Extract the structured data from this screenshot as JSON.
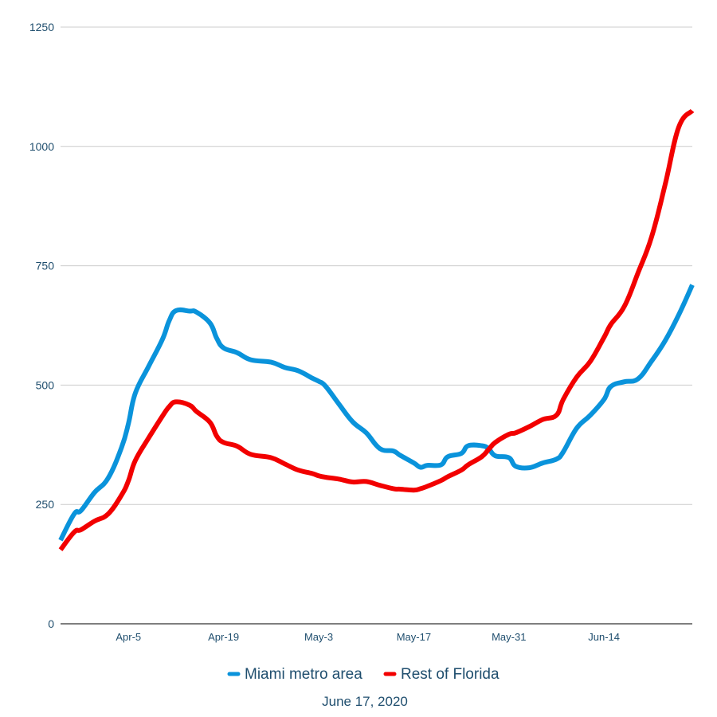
{
  "chart_data": {
    "type": "line",
    "title": "",
    "xlabel": "",
    "ylabel": "",
    "caption": "June 17, 2020",
    "ylim": [
      0,
      1250
    ],
    "y_ticks": [
      0,
      250,
      500,
      750,
      1000,
      1250
    ],
    "x_ticks": [
      "Apr-5",
      "Apr-19",
      "May-3",
      "May-17",
      "May-31",
      "Jun-14"
    ],
    "grid": true,
    "legend_position": "bottom",
    "colors": {
      "Miami metro area": "#0a93db",
      "Rest of Florida": "#f20000"
    },
    "series": [
      {
        "name": "Miami metro area",
        "color": "#0a93db",
        "points": [
          [
            "2020-03-26",
            175
          ],
          [
            "2020-03-28",
            230
          ],
          [
            "2020-03-29",
            237
          ],
          [
            "2020-03-31",
            275
          ],
          [
            "2020-04-02",
            305
          ],
          [
            "2020-04-04",
            370
          ],
          [
            "2020-04-05",
            420
          ],
          [
            "2020-04-06",
            483
          ],
          [
            "2020-04-08",
            540
          ],
          [
            "2020-04-10",
            596
          ],
          [
            "2020-04-11",
            635
          ],
          [
            "2020-04-12",
            656
          ],
          [
            "2020-04-14",
            655
          ],
          [
            "2020-04-15",
            653
          ],
          [
            "2020-04-17",
            630
          ],
          [
            "2020-04-18",
            598
          ],
          [
            "2020-04-19",
            578
          ],
          [
            "2020-04-21",
            568
          ],
          [
            "2020-04-23",
            553
          ],
          [
            "2020-04-26",
            548
          ],
          [
            "2020-04-28",
            537
          ],
          [
            "2020-04-30",
            530
          ],
          [
            "2020-05-02",
            515
          ],
          [
            "2020-05-03",
            508
          ],
          [
            "2020-05-04",
            498
          ],
          [
            "2020-05-06",
            460
          ],
          [
            "2020-05-08",
            423
          ],
          [
            "2020-05-10",
            400
          ],
          [
            "2020-05-12",
            367
          ],
          [
            "2020-05-14",
            362
          ],
          [
            "2020-05-15",
            353
          ],
          [
            "2020-05-17",
            337
          ],
          [
            "2020-05-18",
            328
          ],
          [
            "2020-05-19",
            332
          ],
          [
            "2020-05-21",
            333
          ],
          [
            "2020-05-22",
            350
          ],
          [
            "2020-05-24",
            357
          ],
          [
            "2020-05-25",
            373
          ],
          [
            "2020-05-27",
            373
          ],
          [
            "2020-05-28",
            367
          ],
          [
            "2020-05-29",
            352
          ],
          [
            "2020-05-31",
            348
          ],
          [
            "2020-06-01",
            330
          ],
          [
            "2020-06-03",
            327
          ],
          [
            "2020-06-05",
            337
          ],
          [
            "2020-06-07",
            345
          ],
          [
            "2020-06-08",
            360
          ],
          [
            "2020-06-10",
            410
          ],
          [
            "2020-06-12",
            437
          ],
          [
            "2020-06-14",
            470
          ],
          [
            "2020-06-15",
            497
          ],
          [
            "2020-06-17",
            507
          ],
          [
            "2020-06-19",
            513
          ],
          [
            "2020-06-21",
            550
          ],
          [
            "2020-06-23",
            593
          ],
          [
            "2020-06-25",
            647
          ],
          [
            "2020-06-27",
            710
          ]
        ]
      },
      {
        "name": "Rest of Florida",
        "color": "#f20000",
        "points": [
          [
            "2020-03-26",
            155
          ],
          [
            "2020-03-28",
            192
          ],
          [
            "2020-03-29",
            197
          ],
          [
            "2020-03-31",
            215
          ],
          [
            "2020-04-02",
            230
          ],
          [
            "2020-04-04",
            270
          ],
          [
            "2020-04-05",
            300
          ],
          [
            "2020-04-06",
            342
          ],
          [
            "2020-04-08",
            390
          ],
          [
            "2020-04-10",
            435
          ],
          [
            "2020-04-11",
            455
          ],
          [
            "2020-04-12",
            465
          ],
          [
            "2020-04-14",
            458
          ],
          [
            "2020-04-15",
            445
          ],
          [
            "2020-04-17",
            422
          ],
          [
            "2020-04-18",
            393
          ],
          [
            "2020-04-19",
            380
          ],
          [
            "2020-04-21",
            372
          ],
          [
            "2020-04-23",
            355
          ],
          [
            "2020-04-26",
            348
          ],
          [
            "2020-04-28",
            335
          ],
          [
            "2020-04-30",
            322
          ],
          [
            "2020-05-02",
            315
          ],
          [
            "2020-05-03",
            310
          ],
          [
            "2020-05-04",
            307
          ],
          [
            "2020-05-06",
            303
          ],
          [
            "2020-05-08",
            297
          ],
          [
            "2020-05-10",
            298
          ],
          [
            "2020-05-12",
            290
          ],
          [
            "2020-05-14",
            283
          ],
          [
            "2020-05-15",
            282
          ],
          [
            "2020-05-17",
            280
          ],
          [
            "2020-05-18",
            283
          ],
          [
            "2020-05-19",
            288
          ],
          [
            "2020-05-21",
            300
          ],
          [
            "2020-05-22",
            308
          ],
          [
            "2020-05-24",
            322
          ],
          [
            "2020-05-25",
            333
          ],
          [
            "2020-05-27",
            350
          ],
          [
            "2020-05-28",
            365
          ],
          [
            "2020-05-29",
            380
          ],
          [
            "2020-05-31",
            397
          ],
          [
            "2020-06-01",
            400
          ],
          [
            "2020-06-03",
            413
          ],
          [
            "2020-06-05",
            428
          ],
          [
            "2020-06-07",
            437
          ],
          [
            "2020-06-08",
            470
          ],
          [
            "2020-06-10",
            517
          ],
          [
            "2020-06-12",
            550
          ],
          [
            "2020-06-14",
            600
          ],
          [
            "2020-06-15",
            627
          ],
          [
            "2020-06-17",
            665
          ],
          [
            "2020-06-19",
            735
          ],
          [
            "2020-06-21",
            810
          ],
          [
            "2020-06-23",
            920
          ],
          [
            "2020-06-25",
            1040
          ],
          [
            "2020-06-27",
            1075
          ]
        ]
      }
    ]
  }
}
